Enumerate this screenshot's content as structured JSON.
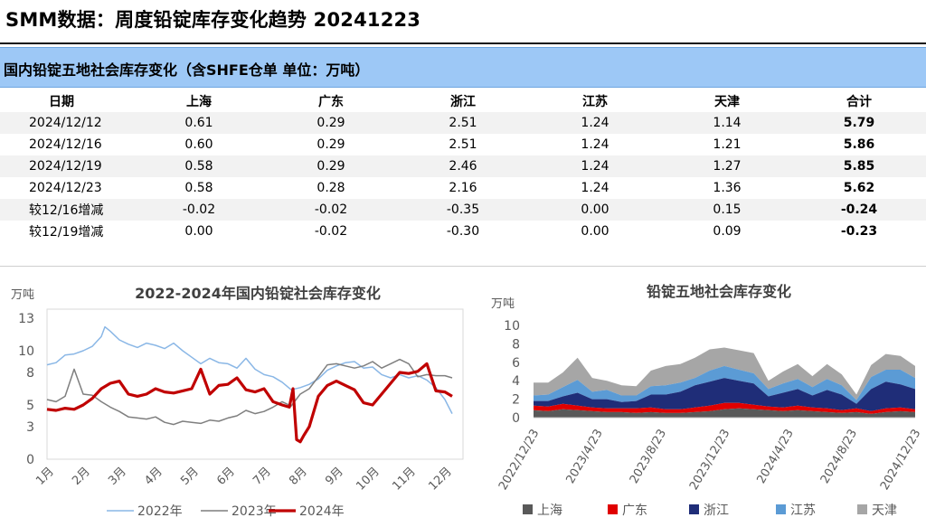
{
  "title": "SMM数据：周度铅锭库存变化趋势 20241223",
  "banner": "国内铅锭五地社会库存变化（含SHFE仓单 单位：万吨）",
  "table": {
    "headers": [
      "日期",
      "上海",
      "广东",
      "浙江",
      "江苏",
      "天津",
      "合计"
    ],
    "rows": [
      [
        "2024/12/12",
        "0.61",
        "0.29",
        "2.51",
        "1.24",
        "1.14",
        "5.79"
      ],
      [
        "2024/12/16",
        "0.60",
        "0.29",
        "2.51",
        "1.24",
        "1.21",
        "5.86"
      ],
      [
        "2024/12/19",
        "0.58",
        "0.29",
        "2.46",
        "1.24",
        "1.27",
        "5.85"
      ],
      [
        "2024/12/23",
        "0.58",
        "0.28",
        "2.16",
        "1.24",
        "1.36",
        "5.62"
      ],
      [
        "较12/16增减",
        "-0.02",
        "-0.02",
        "-0.35",
        "0.00",
        "0.15",
        "-0.24"
      ],
      [
        "较12/19增减",
        "0.00",
        "-0.02",
        "-0.30",
        "0.00",
        "0.09",
        "-0.23"
      ]
    ]
  },
  "chart_data": [
    {
      "type": "line",
      "title": "2022-2024年国内铅锭社会库存变化",
      "ylabel": "万吨",
      "ylim": [
        0,
        13
      ],
      "yticks": [
        0,
        3,
        5,
        8,
        10,
        13
      ],
      "categories": [
        "1月",
        "2月",
        "3月",
        "4月",
        "5月",
        "6月",
        "7月",
        "8月",
        "9月",
        "10月",
        "11月",
        "12月"
      ],
      "x_range": [
        1,
        12.5
      ],
      "grid": false,
      "legend_position": "bottom",
      "colors": {
        "2022年": "#8ab7e6",
        "2023年": "#7f7f7f",
        "2024年": "#c00000"
      },
      "series": [
        {
          "name": "2022年",
          "x": [
            1,
            1.25,
            1.5,
            1.75,
            2,
            2.25,
            2.5,
            2.6,
            2.75,
            3,
            3.25,
            3.5,
            3.75,
            4,
            4.25,
            4.5,
            4.75,
            5,
            5.25,
            5.5,
            5.75,
            6,
            6.25,
            6.5,
            6.75,
            7,
            7.25,
            7.5,
            7.75,
            8,
            8.25,
            8.5,
            8.75,
            9,
            9.25,
            9.5,
            9.75,
            10,
            10.25,
            10.5,
            10.75,
            11,
            11.25,
            11.5,
            11.75,
            12,
            12.2
          ],
          "values": [
            8.7,
            8.9,
            9.6,
            9.7,
            10.0,
            10.4,
            11.3,
            12.2,
            11.8,
            11.0,
            10.6,
            10.3,
            10.7,
            10.5,
            10.2,
            10.7,
            10.0,
            9.4,
            8.8,
            9.3,
            8.9,
            8.8,
            8.4,
            9.3,
            8.3,
            7.8,
            7.6,
            7.1,
            6.4,
            6.6,
            6.9,
            7.4,
            8.2,
            8.6,
            8.9,
            9.0,
            8.4,
            8.5,
            7.8,
            7.5,
            7.8,
            7.5,
            7.7,
            7.3,
            6.6,
            5.5,
            4.2
          ]
        },
        {
          "name": "2023年",
          "x": [
            1,
            1.25,
            1.5,
            1.75,
            2,
            2.25,
            2.5,
            2.75,
            3,
            3.25,
            3.5,
            3.75,
            4,
            4.25,
            4.5,
            4.75,
            5,
            5.25,
            5.5,
            5.75,
            6,
            6.25,
            6.5,
            6.75,
            7,
            7.25,
            7.5,
            7.75,
            8,
            8.25,
            8.5,
            8.75,
            9,
            9.25,
            9.5,
            9.75,
            10,
            10.25,
            10.5,
            10.75,
            11,
            11.25,
            11.5,
            11.75,
            12,
            12.2
          ],
          "values": [
            5.5,
            5.3,
            5.8,
            8.3,
            6.0,
            5.9,
            5.3,
            4.8,
            4.4,
            3.9,
            3.8,
            3.7,
            3.9,
            3.4,
            3.2,
            3.5,
            3.4,
            3.3,
            3.6,
            3.5,
            3.8,
            4.0,
            4.5,
            4.2,
            4.4,
            4.8,
            5.3,
            4.9,
            6.0,
            6.5,
            7.6,
            8.7,
            8.8,
            8.6,
            8.4,
            8.6,
            9.0,
            8.4,
            8.8,
            9.2,
            8.8,
            7.6,
            7.8,
            7.7,
            7.7,
            7.5
          ]
        },
        {
          "name": "2024年",
          "x": [
            1,
            1.25,
            1.5,
            1.75,
            2,
            2.25,
            2.5,
            2.75,
            3,
            3.25,
            3.5,
            3.75,
            4,
            4.25,
            4.5,
            4.75,
            5,
            5.25,
            5.5,
            5.75,
            6,
            6.25,
            6.5,
            6.75,
            7,
            7.25,
            7.5,
            7.7,
            7.8,
            7.9,
            8.0,
            8.1,
            8.25,
            8.5,
            8.75,
            9,
            9.25,
            9.5,
            9.75,
            10,
            10.25,
            10.5,
            10.75,
            11,
            11.25,
            11.5,
            11.75,
            12,
            12.2
          ],
          "values": [
            4.6,
            4.5,
            4.7,
            4.6,
            5.0,
            5.6,
            6.5,
            7.0,
            7.2,
            6.0,
            5.8,
            6.0,
            6.5,
            6.2,
            6.1,
            6.3,
            6.5,
            8.3,
            6.0,
            6.8,
            6.9,
            7.5,
            6.4,
            6.2,
            6.5,
            5.3,
            5.0,
            4.8,
            6.5,
            1.8,
            1.6,
            2.2,
            3.0,
            5.8,
            6.8,
            7.2,
            6.8,
            6.4,
            5.2,
            5.0,
            6.0,
            7.0,
            8.0,
            7.9,
            8.1,
            8.8,
            6.3,
            6.2,
            5.8
          ]
        }
      ]
    },
    {
      "type": "area",
      "stacked": true,
      "title": "铅锭五地社会库存变化",
      "ylabel": "万吨",
      "ylim": [
        0,
        10
      ],
      "yticks": [
        0,
        2,
        4,
        6,
        8,
        10
      ],
      "x_range": [
        "2022/12/23",
        "2024/12/23"
      ],
      "xticks": [
        "2022/12/23",
        "2023/4/23",
        "2023/8/23",
        "2023/12/23",
        "2024/4/23",
        "2024/8/23",
        "2024/12/23"
      ],
      "grid": false,
      "legend_position": "bottom",
      "colors": {
        "上海": "#595959",
        "广东": "#e00000",
        "浙江": "#1f2d78",
        "江苏": "#5b9bd5",
        "天津": "#a6a6a6"
      },
      "series": [
        {
          "name": "上海",
          "values": [
            0.8,
            0.7,
            0.9,
            0.8,
            0.7,
            0.6,
            0.6,
            0.5,
            0.6,
            0.5,
            0.5,
            0.6,
            0.7,
            0.9,
            1.0,
            0.9,
            0.8,
            0.7,
            0.8,
            0.7,
            0.6,
            0.5,
            0.6,
            0.4,
            0.6,
            0.7,
            0.6
          ]
        },
        {
          "name": "广东",
          "values": [
            0.5,
            0.5,
            0.6,
            0.5,
            0.4,
            0.4,
            0.4,
            0.5,
            0.5,
            0.4,
            0.4,
            0.5,
            0.6,
            0.7,
            0.6,
            0.5,
            0.4,
            0.4,
            0.5,
            0.4,
            0.4,
            0.3,
            0.4,
            0.3,
            0.4,
            0.4,
            0.3
          ]
        },
        {
          "name": "浙江",
          "values": [
            0.5,
            0.6,
            0.8,
            1.4,
            0.9,
            1.0,
            0.7,
            0.8,
            1.4,
            1.6,
            1.9,
            2.4,
            2.6,
            2.7,
            2.4,
            2.3,
            1.1,
            1.6,
            1.8,
            1.3,
            2.0,
            1.7,
            0.5,
            2.4,
            2.9,
            2.5,
            2.2
          ]
        },
        {
          "name": "江苏",
          "values": [
            0.6,
            0.7,
            1.0,
            1.4,
            0.8,
            1.0,
            0.7,
            0.6,
            0.9,
            1.0,
            1.0,
            0.8,
            1.2,
            1.3,
            1.2,
            1.1,
            0.8,
            1.0,
            1.1,
            0.9,
            1.2,
            1.0,
            0.4,
            1.3,
            1.3,
            1.6,
            1.2
          ]
        },
        {
          "name": "天津",
          "values": [
            1.4,
            1.3,
            1.6,
            2.4,
            1.5,
            1.0,
            1.1,
            1.0,
            1.7,
            2.1,
            2.0,
            2.2,
            2.3,
            2.0,
            2.1,
            2.2,
            0.9,
            1.3,
            1.6,
            1.2,
            1.6,
            1.2,
            0.6,
            1.3,
            1.7,
            1.5,
            1.3
          ]
        }
      ]
    }
  ]
}
